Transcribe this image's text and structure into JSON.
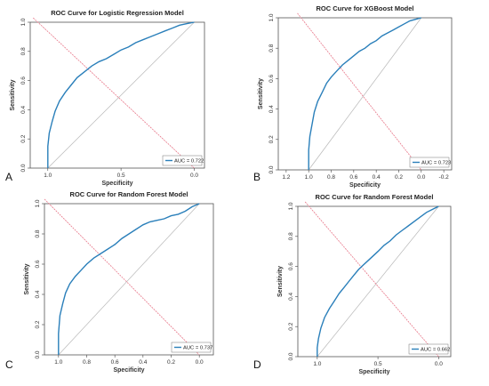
{
  "chart_data": [
    {
      "panel": "A",
      "type": "line",
      "title": "ROC Curve for Logistic Regression Model",
      "xlabel": "Specificity",
      "ylabel": "Sensitivity",
      "xlim": [
        1.12,
        -0.07
      ],
      "ylim": [
        0,
        1
      ],
      "xticks": [
        "1.0",
        "0.5",
        "0.0"
      ],
      "xtick_values": [
        1.0,
        0.5,
        0.0
      ],
      "yticks": [
        "0.0",
        "0.2",
        "0.4",
        "0.6",
        "0.8",
        "1.0"
      ],
      "legend": {
        "position": "bottom-right",
        "label": "AUC = 0.722"
      },
      "colors": {
        "roc": "#2a7fba",
        "diagonal": "#e8788a",
        "reference": "#b8b8b8"
      },
      "series": [
        {
          "x": [
            1.0,
            1.0,
            0.99,
            0.97,
            0.95,
            0.92,
            0.88,
            0.84,
            0.8,
            0.75,
            0.7,
            0.65,
            0.6,
            0.55,
            0.5,
            0.45,
            0.4,
            0.35,
            0.3,
            0.25,
            0.2,
            0.15,
            0.1,
            0.05,
            0.0
          ],
          "y": [
            0.0,
            0.15,
            0.24,
            0.32,
            0.39,
            0.46,
            0.52,
            0.57,
            0.62,
            0.66,
            0.7,
            0.73,
            0.75,
            0.78,
            0.81,
            0.83,
            0.86,
            0.88,
            0.9,
            0.92,
            0.94,
            0.96,
            0.98,
            0.99,
            1.0
          ]
        }
      ]
    },
    {
      "panel": "B",
      "type": "line",
      "title": "ROC Curve for XGBoost Model",
      "xlabel": "Specificity",
      "ylabel": "Sensitivity",
      "xlim": [
        1.27,
        -0.27
      ],
      "ylim": [
        0,
        1
      ],
      "xticks": [
        "1.2",
        "1.0",
        "0.8",
        "0.6",
        "0.4",
        "0.2",
        "0.0",
        "-0.2"
      ],
      "xtick_values": [
        1.2,
        1.0,
        0.8,
        0.6,
        0.4,
        0.2,
        0.0,
        -0.2
      ],
      "yticks": [
        "0.0",
        "0.2",
        "0.4",
        "0.6",
        "0.8",
        "1.0"
      ],
      "legend": {
        "position": "bottom-right",
        "label": "AUC = 0.723"
      },
      "colors": {
        "roc": "#2a7fba",
        "diagonal": "#e8788a",
        "reference": "#b8b8b8"
      },
      "series": [
        {
          "x": [
            1.0,
            1.0,
            0.99,
            0.97,
            0.95,
            0.92,
            0.88,
            0.84,
            0.8,
            0.75,
            0.7,
            0.65,
            0.6,
            0.55,
            0.5,
            0.45,
            0.4,
            0.35,
            0.3,
            0.25,
            0.2,
            0.15,
            0.1,
            0.05,
            0.0
          ],
          "y": [
            0.0,
            0.13,
            0.22,
            0.3,
            0.38,
            0.45,
            0.51,
            0.57,
            0.61,
            0.65,
            0.69,
            0.72,
            0.75,
            0.78,
            0.8,
            0.83,
            0.85,
            0.88,
            0.9,
            0.92,
            0.94,
            0.96,
            0.98,
            0.99,
            1.0
          ]
        }
      ]
    },
    {
      "panel": "C",
      "type": "line",
      "title": "ROC Curve for Random Forest Model",
      "xlabel": "Specificity",
      "ylabel": "Sensitivity",
      "xlim": [
        1.1,
        -0.1
      ],
      "ylim": [
        0,
        1
      ],
      "xticks": [
        "1.0",
        "0.8",
        "0.6",
        "0.4",
        "0.2",
        "0.0"
      ],
      "xtick_values": [
        1.0,
        0.8,
        0.6,
        0.4,
        0.2,
        0.0
      ],
      "yticks": [
        "0.0",
        "0.2",
        "0.4",
        "0.6",
        "0.8",
        "1.0"
      ],
      "legend": {
        "position": "bottom-right",
        "label": "AUC = 0.737"
      },
      "colors": {
        "roc": "#2a7fba",
        "diagonal": "#e8788a",
        "reference": "#b8b8b8"
      },
      "series": [
        {
          "x": [
            1.0,
            1.0,
            0.99,
            0.97,
            0.95,
            0.92,
            0.88,
            0.84,
            0.8,
            0.75,
            0.7,
            0.65,
            0.6,
            0.55,
            0.5,
            0.45,
            0.4,
            0.35,
            0.3,
            0.25,
            0.2,
            0.15,
            0.1,
            0.05,
            0.0
          ],
          "y": [
            0.0,
            0.14,
            0.26,
            0.34,
            0.41,
            0.47,
            0.52,
            0.56,
            0.6,
            0.64,
            0.67,
            0.7,
            0.73,
            0.77,
            0.8,
            0.83,
            0.86,
            0.88,
            0.89,
            0.9,
            0.92,
            0.93,
            0.95,
            0.98,
            1.0
          ]
        }
      ]
    },
    {
      "panel": "D",
      "type": "line",
      "title": "ROC Curve for Random Forest Model",
      "xlabel": "Specificity",
      "ylabel": "Sensitivity",
      "xlim": [
        1.16,
        -0.1
      ],
      "ylim": [
        0,
        1
      ],
      "xticks": [
        "1.0",
        "0.5",
        "0.0"
      ],
      "xtick_values": [
        1.0,
        0.5,
        0.0
      ],
      "yticks": [
        "0.0",
        "0.2",
        "0.4",
        "0.6",
        "0.8",
        "1.0"
      ],
      "legend": {
        "position": "bottom-right",
        "label": "AUC = 0.662"
      },
      "colors": {
        "roc": "#2a7fba",
        "diagonal": "#e8788a",
        "reference": "#b8b8b8"
      },
      "series": [
        {
          "x": [
            1.0,
            1.0,
            0.99,
            0.97,
            0.94,
            0.9,
            0.86,
            0.82,
            0.78,
            0.74,
            0.7,
            0.66,
            0.62,
            0.58,
            0.54,
            0.5,
            0.45,
            0.4,
            0.35,
            0.3,
            0.25,
            0.2,
            0.15,
            0.1,
            0.05,
            0.0
          ],
          "y": [
            0.0,
            0.06,
            0.12,
            0.19,
            0.26,
            0.32,
            0.37,
            0.42,
            0.46,
            0.5,
            0.54,
            0.58,
            0.61,
            0.64,
            0.67,
            0.7,
            0.74,
            0.77,
            0.81,
            0.84,
            0.87,
            0.9,
            0.93,
            0.96,
            0.98,
            1.0
          ]
        }
      ]
    }
  ]
}
